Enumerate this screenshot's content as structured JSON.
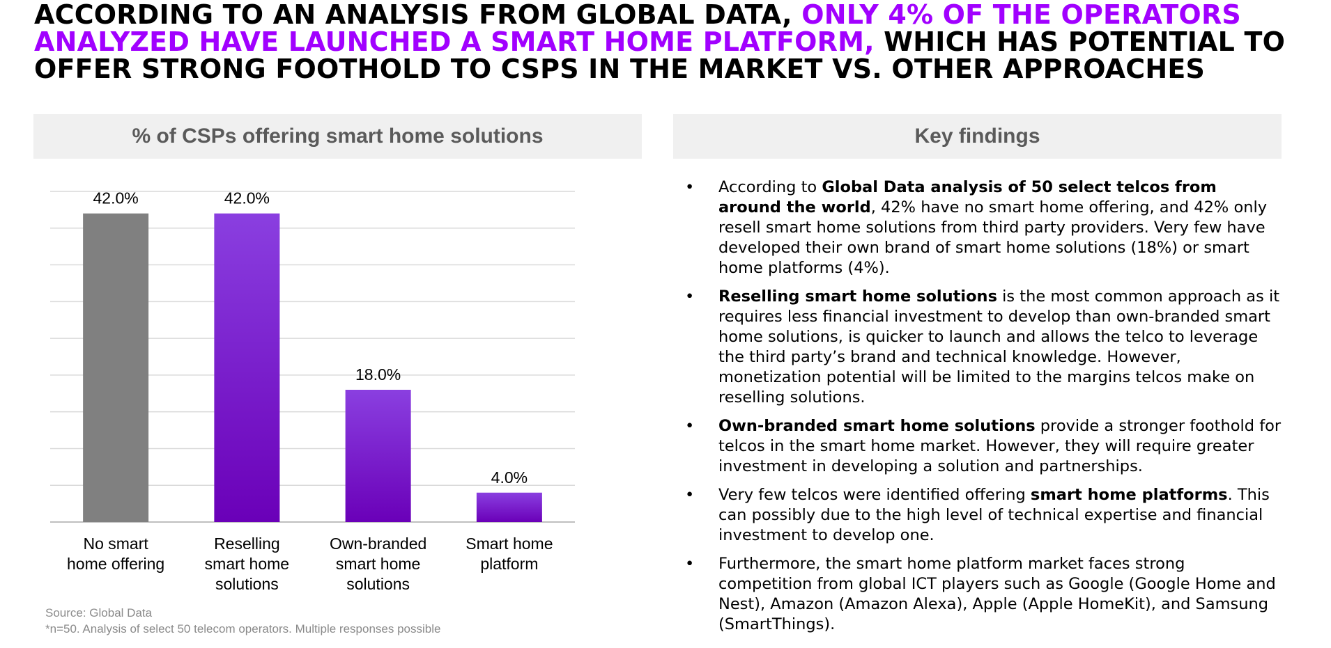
{
  "headline": {
    "part1": "According to an analysis from Global Data, ",
    "highlight": "only 4% of the operators analyzed have launched a smart home platform,",
    "part2": " which has potential to offer strong foothold to CSPs in the market vs. other approaches",
    "highlight_color": "#a100ff"
  },
  "chart_panel": {
    "title": "% of CSPs offering smart home solutions"
  },
  "findings_panel": {
    "title": "Key findings"
  },
  "chart_data": {
    "type": "bar",
    "title": "% of CSPs offering smart home solutions",
    "categories": [
      [
        "No smart",
        "home offering"
      ],
      [
        "Reselling",
        "smart home",
        "solutions"
      ],
      [
        "Own-branded",
        "smart home",
        "solutions"
      ],
      [
        "Smart home",
        "platform"
      ]
    ],
    "values": [
      42.0,
      42.0,
      18.0,
      4.0
    ],
    "data_labels": [
      "42.0%",
      "42.0%",
      "18.0%",
      "4.0%"
    ],
    "ylim": [
      0,
      45
    ],
    "grid": true,
    "bar_colors": [
      [
        "#808080",
        "#808080"
      ],
      [
        "#8a3fe0",
        "#6a00b8"
      ],
      [
        "#8a3fe0",
        "#6a00b8"
      ],
      [
        "#8a3fe0",
        "#6a00b8"
      ]
    ]
  },
  "source": {
    "line1": "Source: Global Data",
    "line2": "*n=50. Analysis of select 50 telecom operators. Multiple responses possible"
  },
  "findings": [
    {
      "prefix": "According to ",
      "bold": "Global Data analysis of 50 select telcos from around the world",
      "text": ", 42% have no smart home offering, and 42% only resell smart home solutions from third party providers. Very few have developed their own brand of smart home solutions (18%) or smart home platforms (4%)."
    },
    {
      "prefix": "",
      "bold": "Reselling smart home solutions",
      "text": " is the most common approach as it requires less financial investment to develop than own-branded smart home solutions, is quicker to launch and allows the telco to leverage the third party’s brand and technical knowledge. However, monetization potential will be limited to the margins telcos make on reselling solutions."
    },
    {
      "prefix": "",
      "bold": "Own-branded smart home solutions",
      "text": " provide a stronger foothold for telcos in the smart home market. However, they will require greater investment in developing a solution and partnerships."
    },
    {
      "prefix": "Very few telcos were identified offering ",
      "bold": "smart home platforms",
      "text": ". This can possibly due to the high level of technical expertise and financial investment to develop one."
    },
    {
      "prefix": "Furthermore, the smart home platform market faces strong competition from global ICT players such as Google (Google Home and Nest), Amazon (Amazon Alexa), Apple (Apple HomeKit), and Samsung (SmartThings).",
      "bold": "",
      "text": ""
    }
  ]
}
